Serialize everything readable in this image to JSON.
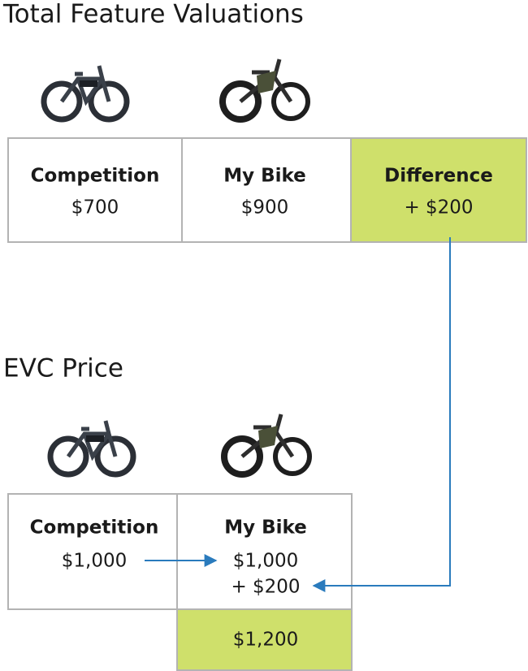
{
  "top_section": {
    "title": "Total Feature Valuations",
    "cells": [
      {
        "header": "Competition",
        "value": "$700"
      },
      {
        "header": "My Bike",
        "value": "$900"
      },
      {
        "header": "Difference",
        "value": "+ $200"
      }
    ]
  },
  "bottom_section": {
    "title": "EVC Price",
    "cells": [
      {
        "header": "Competition",
        "value": "$1,000"
      },
      {
        "header": "My Bike",
        "value": "$1,000",
        "addition": "+ $200"
      }
    ],
    "total": "$1,200"
  }
}
